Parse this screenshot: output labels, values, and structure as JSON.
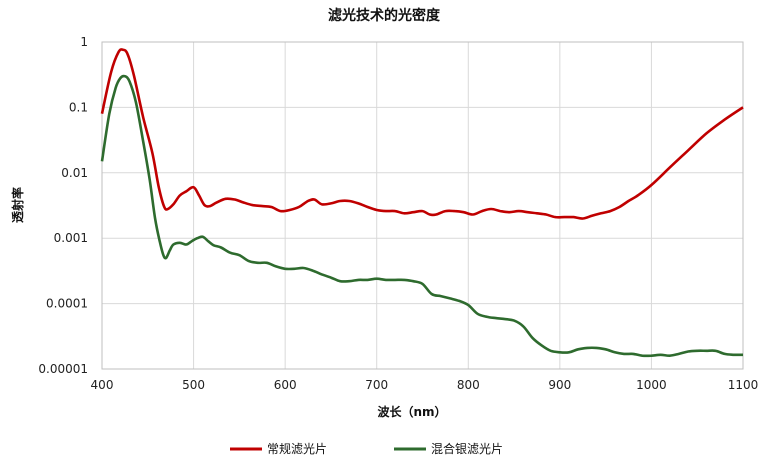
{
  "chart_data": {
    "type": "line",
    "title": "滤光技术的光密度",
    "xlabel": "波长（nm）",
    "ylabel": "透射率",
    "xlim": [
      400,
      1100
    ],
    "ylim": [
      1e-05,
      1
    ],
    "y_scale": "log",
    "grid": true,
    "legend_position": "bottom",
    "x_ticks": [
      400,
      500,
      600,
      700,
      800,
      900,
      1000,
      1100
    ],
    "x_tick_labels": [
      "400",
      "500",
      "600",
      "700",
      "800",
      "900",
      "1000",
      "1100"
    ],
    "y_ticks": [
      1,
      0.1,
      0.01,
      0.001,
      0.0001,
      1e-05
    ],
    "y_tick_labels": [
      "1",
      "0.1",
      "0.01",
      "0.001",
      "0.0001",
      "0.00001"
    ],
    "series": [
      {
        "name": "常规滤光片",
        "color": "#c00000",
        "x": [
          400,
          410,
          418,
          423,
          428,
          435,
          445,
          455,
          462,
          468,
          472,
          478,
          485,
          492,
          500,
          506,
          512,
          518,
          525,
          535,
          545,
          555,
          565,
          575,
          585,
          595,
          605,
          615,
          625,
          632,
          640,
          650,
          660,
          670,
          680,
          690,
          700,
          710,
          720,
          730,
          740,
          750,
          758,
          765,
          775,
          785,
          795,
          805,
          815,
          825,
          835,
          845,
          855,
          865,
          875,
          885,
          895,
          905,
          915,
          925,
          935,
          945,
          955,
          965,
          975,
          985,
          1000,
          1020,
          1040,
          1060,
          1080,
          1100
        ],
        "y": [
          0.08,
          0.35,
          0.7,
          0.76,
          0.65,
          0.3,
          0.07,
          0.02,
          0.006,
          0.003,
          0.0028,
          0.0033,
          0.0045,
          0.0052,
          0.006,
          0.0045,
          0.0032,
          0.0031,
          0.0035,
          0.004,
          0.0039,
          0.0035,
          0.0032,
          0.0031,
          0.003,
          0.0026,
          0.0027,
          0.003,
          0.0037,
          0.0039,
          0.0033,
          0.0034,
          0.0037,
          0.0037,
          0.0034,
          0.003,
          0.0027,
          0.0026,
          0.0026,
          0.0024,
          0.0025,
          0.0026,
          0.0023,
          0.0023,
          0.0026,
          0.0026,
          0.0025,
          0.0023,
          0.0026,
          0.0028,
          0.0026,
          0.0025,
          0.0026,
          0.0025,
          0.0024,
          0.0023,
          0.0021,
          0.0021,
          0.0021,
          0.002,
          0.0022,
          0.0024,
          0.0026,
          0.003,
          0.0037,
          0.0045,
          0.0065,
          0.012,
          0.022,
          0.04,
          0.065,
          0.1
        ]
      },
      {
        "name": "混合银滤光片",
        "color": "#2e6b2e",
        "x": [
          400,
          408,
          415,
          420,
          425,
          430,
          437,
          445,
          452,
          458,
          463,
          467,
          470,
          474,
          478,
          485,
          492,
          498,
          504,
          510,
          516,
          522,
          530,
          540,
          550,
          560,
          570,
          580,
          590,
          600,
          610,
          620,
          630,
          640,
          650,
          660,
          670,
          680,
          690,
          700,
          710,
          720,
          730,
          740,
          750,
          760,
          770,
          780,
          790,
          800,
          810,
          820,
          830,
          840,
          850,
          860,
          870,
          880,
          890,
          900,
          910,
          920,
          930,
          940,
          950,
          960,
          970,
          980,
          990,
          1000,
          1010,
          1020,
          1030,
          1040,
          1050,
          1060,
          1070,
          1080,
          1090,
          1100
        ],
        "y": [
          0.015,
          0.08,
          0.2,
          0.28,
          0.3,
          0.25,
          0.12,
          0.03,
          0.008,
          0.002,
          0.0009,
          0.00055,
          0.0005,
          0.00065,
          0.0008,
          0.00085,
          0.0008,
          0.0009,
          0.001,
          0.00105,
          0.0009,
          0.00078,
          0.00072,
          0.0006,
          0.00055,
          0.00045,
          0.00042,
          0.00042,
          0.00037,
          0.00034,
          0.00034,
          0.00035,
          0.00032,
          0.00028,
          0.00025,
          0.00022,
          0.00022,
          0.00023,
          0.00023,
          0.00024,
          0.00023,
          0.00023,
          0.00023,
          0.00022,
          0.0002,
          0.00014,
          0.00013,
          0.00012,
          0.00011,
          9.5e-05,
          7e-05,
          6.3e-05,
          6e-05,
          5.8e-05,
          5.5e-05,
          4.5e-05,
          3e-05,
          2.3e-05,
          1.9e-05,
          1.8e-05,
          1.8e-05,
          2e-05,
          2.1e-05,
          2.1e-05,
          2e-05,
          1.8e-05,
          1.7e-05,
          1.7e-05,
          1.6e-05,
          1.6e-05,
          1.65e-05,
          1.6e-05,
          1.7e-05,
          1.85e-05,
          1.9e-05,
          1.9e-05,
          1.9e-05,
          1.7e-05,
          1.65e-05,
          1.65e-05
        ]
      }
    ]
  }
}
